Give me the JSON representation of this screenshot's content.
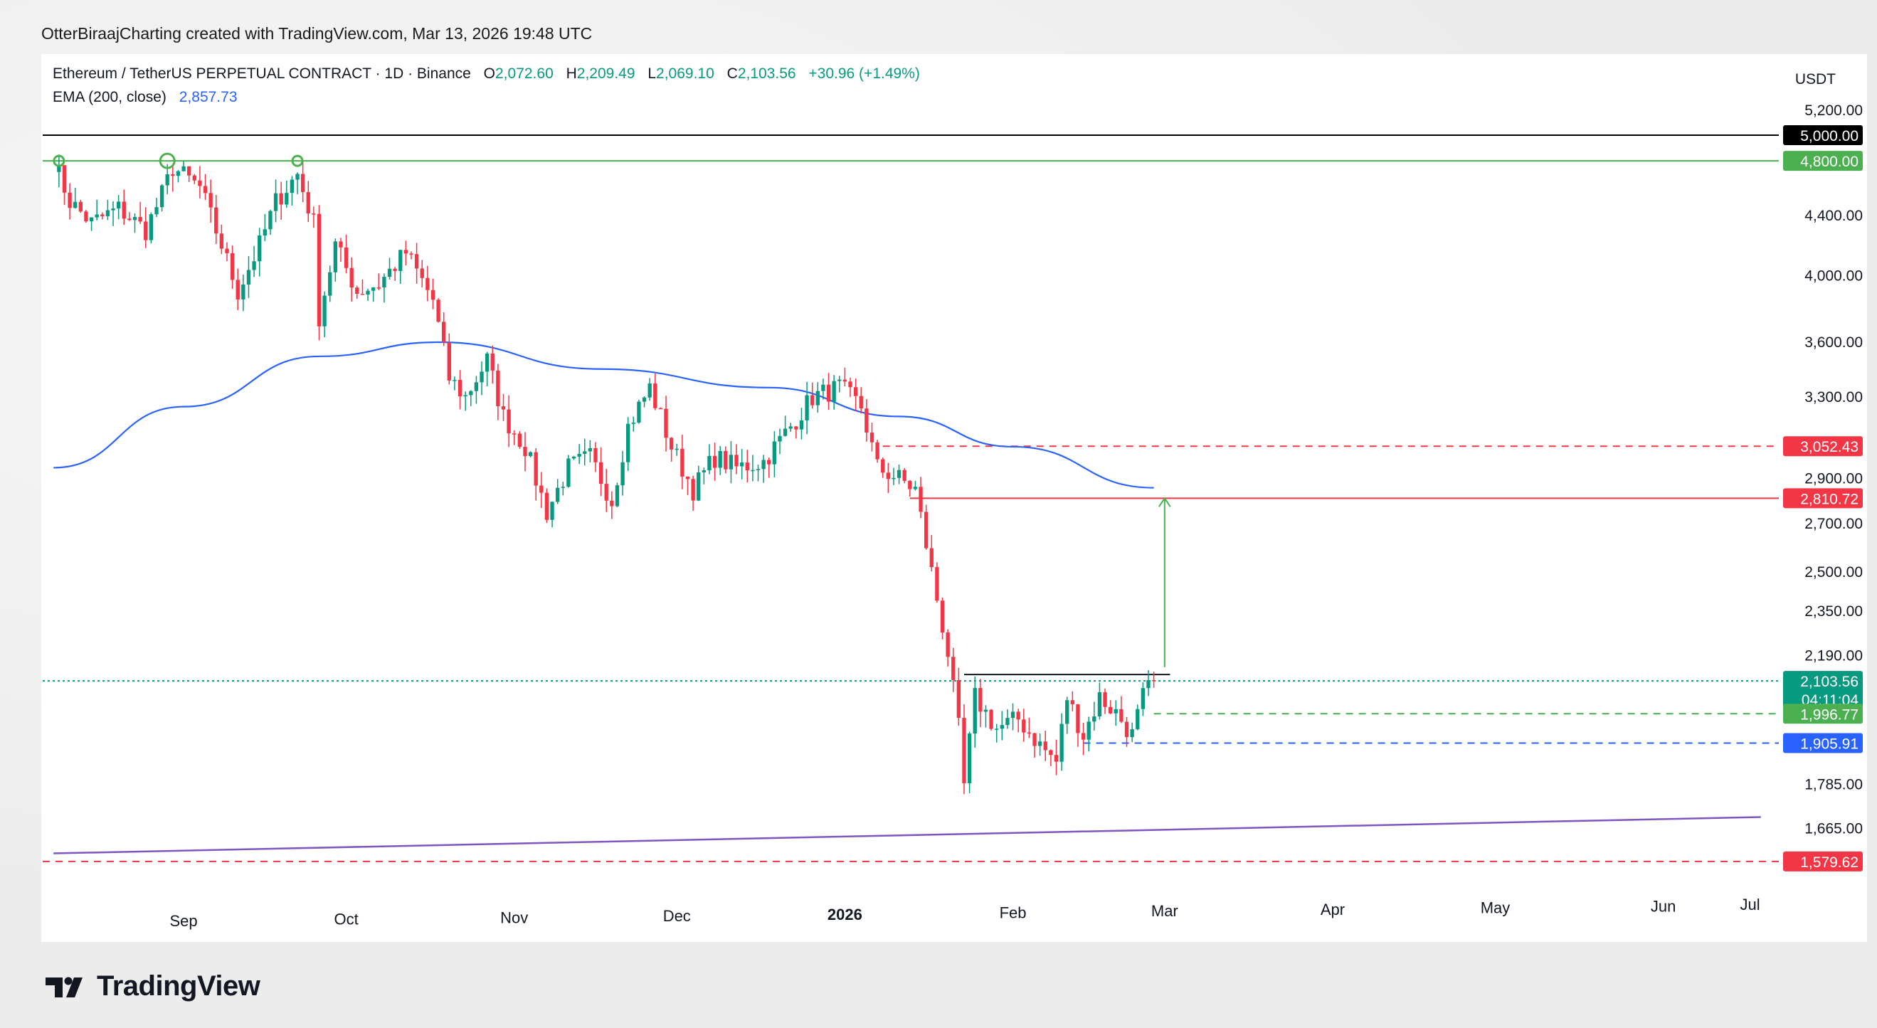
{
  "attribution": "OtterBiraajCharting created with TradingView.com, Mar 13, 2026 19:48 UTC",
  "legend": {
    "symbol": "Ethereum / TetherUS PERPETUAL CONTRACT · 1D · Binance",
    "open_label": "O",
    "open": "2,072.60",
    "high_label": "H",
    "high": "2,209.49",
    "low_label": "L",
    "low": "2,069.10",
    "close_label": "C",
    "close": "2,103.56",
    "change": "+30.96 (+1.49%)",
    "ema_label": "EMA (200, close)",
    "ema_value": "2,857.73"
  },
  "brand": "TradingView",
  "colors": {
    "up": "#089981",
    "down": "#f23645",
    "ema": "#2962ff",
    "level_green": "#4caf50",
    "level_red": "#f23645",
    "support_blue": "#2962ff",
    "trend_purple": "#7e57c2",
    "black_level": "#000000"
  },
  "chart_data": {
    "type": "candlestick",
    "symbol": "ETHUSDT.P",
    "interval": "1D",
    "currency": "USDT",
    "x_labels": [
      "Sep",
      "Oct",
      "Nov",
      "Dec",
      "2026",
      "Feb",
      "Mar",
      "Apr",
      "May",
      "Jun",
      "Jul"
    ],
    "y_ticks": [
      5200,
      4400,
      4000,
      3600,
      3300,
      2900,
      2700,
      2500,
      2350,
      2190,
      1785,
      1665
    ],
    "y_tick_labels": [
      "5,200.00",
      "4,400.00",
      "4,000.00",
      "3,600.00",
      "3,300.00",
      "2,900.00",
      "2,700.00",
      "2,500.00",
      "2,350.00",
      "2,190.00",
      "1,785.00",
      "1,665.00"
    ],
    "ylim": [
      1520,
      5350
    ],
    "scale": "log",
    "price_labels": [
      {
        "text": "5,000.00",
        "value": 5000,
        "style": "black"
      },
      {
        "text": "4,800.00",
        "value": 4800,
        "style": "green"
      },
      {
        "text": "3,052.43",
        "value": 3052.43,
        "style": "red"
      },
      {
        "text": "2,810.72",
        "value": 2810.72,
        "style": "red"
      },
      {
        "text": "2,103.56",
        "value": 2103.56,
        "style": "teal",
        "subtext": "04:11:04"
      },
      {
        "text": "1,996.77",
        "value": 1996.77,
        "style": "green"
      },
      {
        "text": "1,905.91",
        "value": 1905.91,
        "style": "blue"
      },
      {
        "text": "1,579.62",
        "value": 1579.62,
        "style": "red"
      }
    ],
    "close_path": [
      [
        "2025-08-22",
        4800
      ],
      [
        "2025-08-25",
        4500
      ],
      [
        "2025-08-29",
        4350
      ],
      [
        "2025-09-03",
        4450
      ],
      [
        "2025-09-08",
        4300
      ],
      [
        "2025-09-11",
        4550
      ],
      [
        "2025-09-13",
        4750
      ],
      [
        "2025-09-18",
        4600
      ],
      [
        "2025-09-22",
        4200
      ],
      [
        "2025-09-25",
        3900
      ],
      [
        "2025-09-29",
        4200
      ],
      [
        "2025-10-02",
        4500
      ],
      [
        "2025-10-06",
        4700
      ],
      [
        "2025-10-09",
        4350
      ],
      [
        "2025-10-10",
        3750
      ],
      [
        "2025-10-13",
        4200
      ],
      [
        "2025-10-17",
        3900
      ],
      [
        "2025-10-21",
        3950
      ],
      [
        "2025-10-26",
        4150
      ],
      [
        "2025-10-31",
        3850
      ],
      [
        "2025-11-03",
        3400
      ],
      [
        "2025-11-06",
        3300
      ],
      [
        "2025-11-10",
        3500
      ],
      [
        "2025-11-13",
        3200
      ],
      [
        "2025-11-17",
        3050
      ],
      [
        "2025-11-21",
        2750
      ],
      [
        "2025-11-25",
        2950
      ],
      [
        "2025-11-29",
        3000
      ],
      [
        "2025-12-03",
        2800
      ],
      [
        "2025-12-06",
        3150
      ],
      [
        "2025-12-10",
        3350
      ],
      [
        "2025-12-14",
        3050
      ],
      [
        "2025-12-18",
        2850
      ],
      [
        "2025-12-22",
        3000
      ],
      [
        "2025-12-26",
        2950
      ],
      [
        "2025-12-31",
        2980
      ],
      [
        "2026-01-05",
        3150
      ],
      [
        "2026-01-09",
        3300
      ],
      [
        "2026-01-14",
        3350
      ],
      [
        "2026-01-18",
        3250
      ],
      [
        "2026-01-21",
        2950
      ],
      [
        "2026-01-25",
        2900
      ],
      [
        "2026-01-28",
        2850
      ],
      [
        "2026-01-31",
        2500
      ],
      [
        "2026-02-03",
        2200
      ],
      [
        "2026-02-05",
        1950
      ],
      [
        "2026-02-06",
        1780
      ],
      [
        "2026-02-08",
        2050
      ],
      [
        "2026-02-12",
        1950
      ],
      [
        "2026-02-16",
        1980
      ],
      [
        "2026-02-20",
        1900
      ],
      [
        "2026-02-23",
        1850
      ],
      [
        "2026-02-25",
        2050
      ],
      [
        "2026-02-28",
        1930
      ],
      [
        "2026-03-03",
        2050
      ],
      [
        "2026-03-06",
        2000
      ],
      [
        "2026-03-09",
        1930
      ],
      [
        "2026-03-11",
        2050
      ],
      [
        "2026-03-13",
        2103.56
      ]
    ],
    "ema_path": [
      [
        "2025-08-22",
        2950
      ],
      [
        "2025-09-15",
        3250
      ],
      [
        "2025-10-10",
        3520
      ],
      [
        "2025-11-01",
        3600
      ],
      [
        "2025-12-01",
        3450
      ],
      [
        "2026-01-01",
        3350
      ],
      [
        "2026-01-25",
        3200
      ],
      [
        "2026-02-15",
        3050
      ],
      [
        "2026-03-13",
        2857.73
      ]
    ],
    "horizontal_levels": [
      {
        "value": 5000,
        "color": "#000000",
        "style": "solid"
      },
      {
        "value": 4800,
        "color": "#4caf50",
        "style": "solid"
      },
      {
        "value": 3052.43,
        "color": "#f23645",
        "style": "dashed",
        "from": "2026-01-22"
      },
      {
        "value": 2810.72,
        "color": "#f23645",
        "style": "solid",
        "from": "2026-01-27"
      },
      {
        "value": 2103.56,
        "color": "#089981",
        "style": "dotted"
      },
      {
        "value": 1996.77,
        "color": "#4caf50",
        "style": "dashed",
        "from": "2026-03-13"
      },
      {
        "value": 1905.91,
        "color": "#2962ff",
        "style": "dashed",
        "from": "2026-02-28"
      },
      {
        "value": 1579.62,
        "color": "#f23645",
        "style": "dashed"
      }
    ],
    "resistance_segment": {
      "from": "2026-02-06",
      "to": "2026-03-16",
      "value": 2125
    },
    "target_arrow": {
      "date": "2026-03-15",
      "from": 2150,
      "to": 2810.72
    },
    "trendline": {
      "from": [
        "2025-08-22",
        1600
      ],
      "to": [
        "2026-07-03",
        1695
      ]
    },
    "swing_high_markers": [
      [
        "2025-08-23",
        4800
      ],
      [
        "2025-09-12",
        4800
      ],
      [
        "2025-10-06",
        4800
      ]
    ]
  }
}
